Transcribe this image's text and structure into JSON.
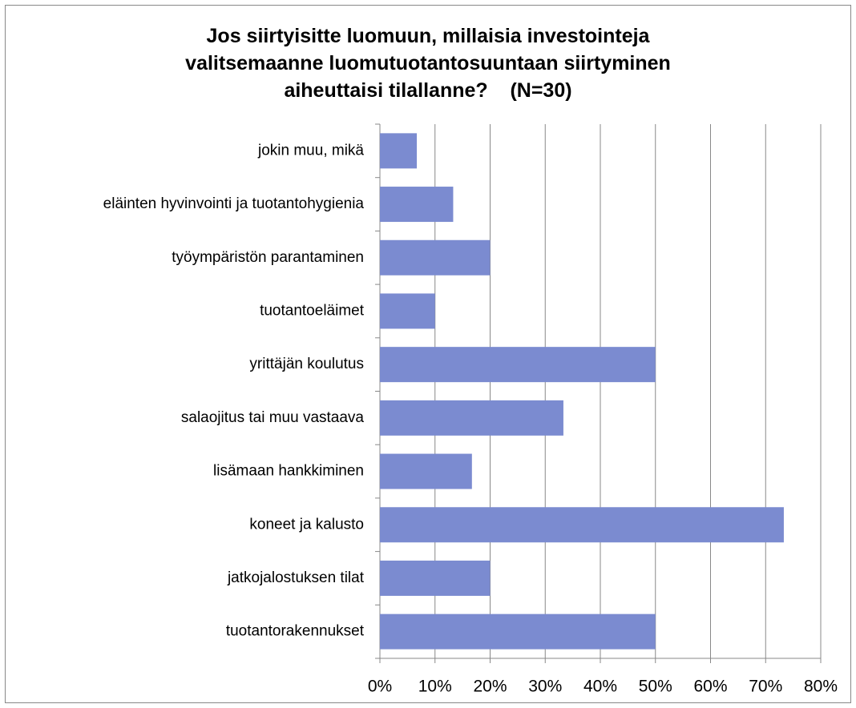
{
  "chart_data": {
    "type": "barh",
    "title": "Jos siirtyisitte luomuun, millaisia investointeja\nvalitsemaanne luomutuotantosuuntaan siirtyminen\naiheuttaisi tilallanne?    (N=30)",
    "categories": [
      "jokin muu, mikä",
      "eläinten hyvinvointi ja tuotantohygienia",
      "työympäristön parantaminen",
      "tuotantoeläimet",
      "yrittäjän koulutus",
      "salaojitus tai muu vastaava",
      "lisämaan hankkiminen",
      "koneet ja kalusto",
      "jatkojalostuksen tilat",
      "tuotantorakennukset"
    ],
    "values": [
      6.7,
      13.3,
      20,
      10,
      50,
      33.3,
      16.7,
      73.3,
      20,
      50
    ],
    "color": "#7b8bd0",
    "xlim": [
      0,
      80
    ],
    "xticks": [
      {
        "value": 0,
        "label": "0%"
      },
      {
        "value": 10,
        "label": "10%"
      },
      {
        "value": 20,
        "label": "20%"
      },
      {
        "value": 30,
        "label": "30%"
      },
      {
        "value": 40,
        "label": "40%"
      },
      {
        "value": 50,
        "label": "50%"
      },
      {
        "value": 60,
        "label": "60%"
      },
      {
        "value": 70,
        "label": "70%"
      },
      {
        "value": 80,
        "label": "80%"
      }
    ],
    "grid": true
  }
}
